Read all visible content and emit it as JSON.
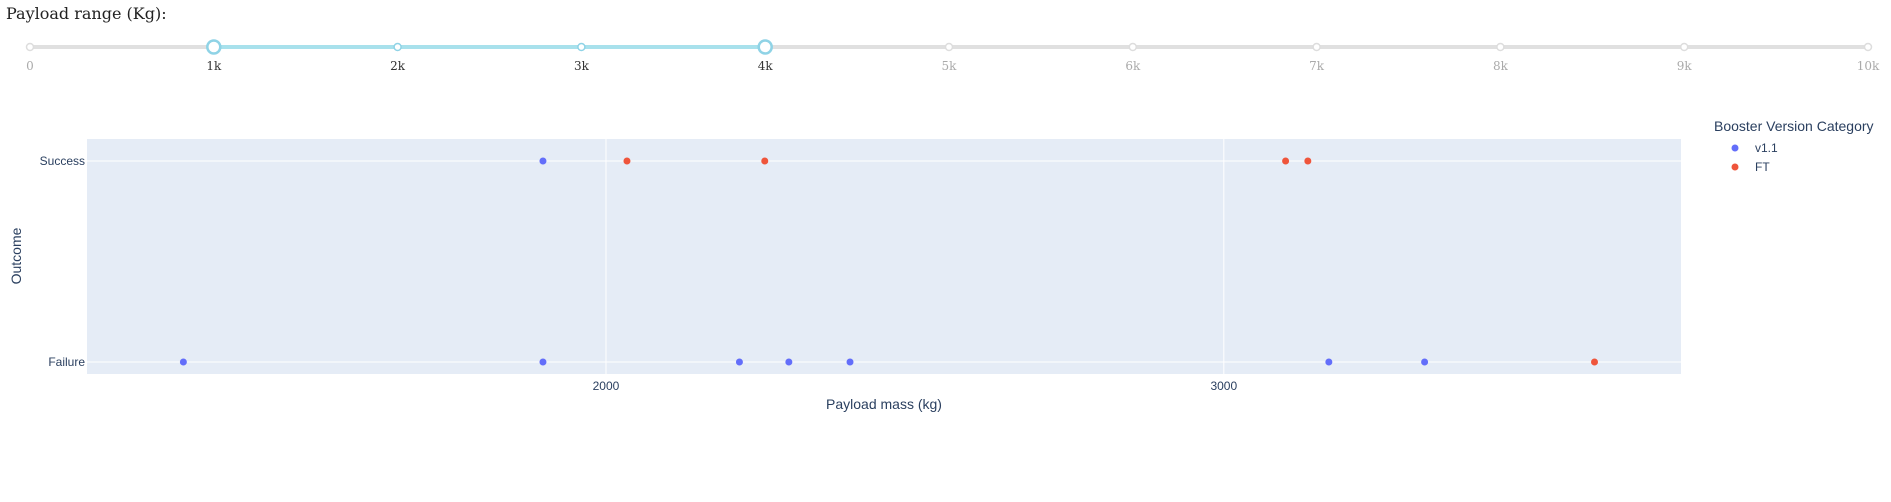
{
  "slider": {
    "label": "Payload range (Kg):",
    "min": 0,
    "max": 10000,
    "selected": [
      1000,
      4000
    ],
    "marks": [
      {
        "value": 0,
        "label": "0"
      },
      {
        "value": 1000,
        "label": "1k"
      },
      {
        "value": 2000,
        "label": "2k"
      },
      {
        "value": 3000,
        "label": "3k"
      },
      {
        "value": 4000,
        "label": "4k"
      },
      {
        "value": 5000,
        "label": "5k"
      },
      {
        "value": 6000,
        "label": "6k"
      },
      {
        "value": 7000,
        "label": "7k"
      },
      {
        "value": 8000,
        "label": "8k"
      },
      {
        "value": 9000,
        "label": "9k"
      },
      {
        "value": 10000,
        "label": "10k"
      }
    ],
    "colors": {
      "track": "#e0e0e0",
      "range": "#a8e1ec",
      "handle": "#8fd3e6"
    }
  },
  "chart_data": {
    "type": "scatter",
    "title": "",
    "xlabel": "Payload mass (kg)",
    "ylabel": "Outcome",
    "xlim": [
      1160,
      3740
    ],
    "xticks": [
      2000,
      3000
    ],
    "y_categories": [
      "Failure",
      "Success"
    ],
    "grid": true,
    "legend_title": "Booster Version Category",
    "legend_position": "right",
    "series": [
      {
        "name": "v1.1",
        "color": "#636efa",
        "points": [
          {
            "x": 1898,
            "y": "Success"
          },
          {
            "x": 1316,
            "y": "Failure"
          },
          {
            "x": 1898,
            "y": "Failure"
          },
          {
            "x": 2216,
            "y": "Failure"
          },
          {
            "x": 2296,
            "y": "Failure"
          },
          {
            "x": 2395,
            "y": "Failure"
          },
          {
            "x": 3170,
            "y": "Failure"
          },
          {
            "x": 3325,
            "y": "Failure"
          }
        ]
      },
      {
        "name": "FT",
        "color": "#ef553b",
        "points": [
          {
            "x": 2034,
            "y": "Success"
          },
          {
            "x": 2257,
            "y": "Success"
          },
          {
            "x": 3100,
            "y": "Success"
          },
          {
            "x": 3136,
            "y": "Success"
          },
          {
            "x": 3600,
            "y": "Failure"
          }
        ]
      }
    ]
  }
}
